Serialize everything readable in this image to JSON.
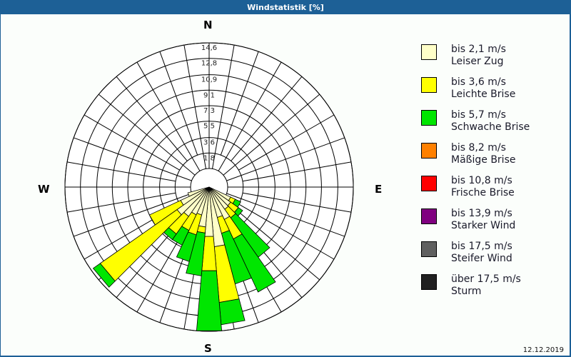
{
  "window": {
    "title": "Windstatistik [%]"
  },
  "footer": {
    "date": "12.12.2019"
  },
  "compass": {
    "n": "N",
    "e": "E",
    "s": "S",
    "w": "W"
  },
  "legend": [
    {
      "range": "bis 2,1 m/s",
      "name": "Leiser Zug",
      "color": "#ffffc8"
    },
    {
      "range": "bis 3,6 m/s",
      "name": "Leichte Brise",
      "color": "#ffff00"
    },
    {
      "range": "bis 5,7 m/s",
      "name": "Schwache Brise",
      "color": "#00e600"
    },
    {
      "range": "bis 8,2 m/s",
      "name": "Mäßige Brise",
      "color": "#ff8000"
    },
    {
      "range": "bis 10,8 m/s",
      "name": "Frische Brise",
      "color": "#ff0000"
    },
    {
      "range": "bis 13,9 m/s",
      "name": "Starker Wind",
      "color": "#800080"
    },
    {
      "range": "bis 17,5 m/s",
      "name": "Steifer Wind",
      "color": "#606060"
    },
    {
      "range": "über 17,5 m/s",
      "name": "Sturm",
      "color": "#202020"
    }
  ],
  "chart_data": {
    "type": "wind-rose",
    "title": "Windstatistik [%]",
    "unit": "%",
    "ring_labels": [
      "1,8",
      "3,6",
      "5,5",
      "7,3",
      "9,1",
      "10,9",
      "12,8",
      "14,6"
    ],
    "ring_values": [
      1.8,
      3.6,
      5.5,
      7.3,
      9.1,
      10.9,
      12.8,
      14.6
    ],
    "rmax": 14.6,
    "sector_width_deg": 10,
    "speed_classes": [
      "bis 2,1 m/s",
      "bis 3,6 m/s",
      "bis 5,7 m/s",
      "bis 8,2 m/s",
      "bis 10,8 m/s",
      "bis 13,9 m/s",
      "bis 17,5 m/s",
      "über 17,5 m/s"
    ],
    "series_cumulative_note": "values are cumulative % per direction for the classes Leiser Zug / Leichte Brise / Schwache Brise",
    "directions": [
      {
        "deg": 120,
        "values": [
          0.6,
          1.2,
          1.9
        ]
      },
      {
        "deg": 130,
        "values": [
          0.9,
          2.0,
          2.6
        ]
      },
      {
        "deg": 140,
        "values": [
          1.0,
          2.2,
          7.8
        ]
      },
      {
        "deg": 150,
        "values": [
          2.0,
          4.5,
          11.3
        ]
      },
      {
        "deg": 160,
        "values": [
          1.5,
          3.4,
          9.5
        ]
      },
      {
        "deg": 170,
        "values": [
          4.8,
          11.3,
          13.9
        ]
      },
      {
        "deg": 180,
        "values": [
          3.6,
          7.6,
          14.6
        ]
      },
      {
        "deg": 190,
        "values": [
          2.5,
          3.2,
          8.2
        ]
      },
      {
        "deg": 200,
        "values": [
          1.2,
          3.6,
          6.8
        ]
      },
      {
        "deg": 210,
        "values": [
          1.4,
          3.4,
          5.3
        ]
      },
      {
        "deg": 220,
        "values": [
          2.0,
          4.5,
          5.3
        ]
      },
      {
        "deg": 230,
        "values": [
          2.4,
          13.3,
          14.3
        ]
      },
      {
        "deg": 240,
        "values": [
          1.5,
          5.5,
          5.5
        ]
      },
      {
        "deg": 250,
        "values": [
          0.4,
          0.4,
          0.4
        ]
      }
    ]
  }
}
